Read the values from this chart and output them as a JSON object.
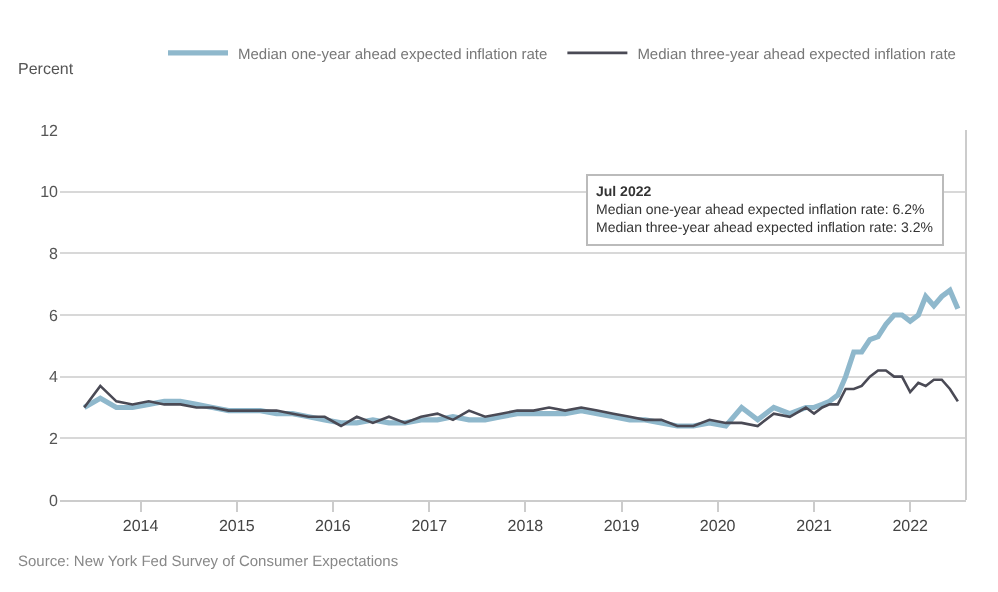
{
  "chart_data": {
    "type": "line",
    "ylabel": "Percent",
    "xlim": [
      "2013-03",
      "2022-08"
    ],
    "xticks": [
      "2014",
      "2015",
      "2016",
      "2017",
      "2018",
      "2019",
      "2020",
      "2021",
      "2022"
    ],
    "ylim": [
      0,
      12
    ],
    "yticks": [
      0,
      2,
      4,
      6,
      8,
      10,
      12
    ],
    "grid": "y",
    "legend": "top right",
    "x": [
      "2013-06",
      "2013-08",
      "2013-10",
      "2013-12",
      "2014-02",
      "2014-04",
      "2014-06",
      "2014-08",
      "2014-10",
      "2014-12",
      "2015-02",
      "2015-04",
      "2015-06",
      "2015-08",
      "2015-10",
      "2015-12",
      "2016-02",
      "2016-04",
      "2016-06",
      "2016-08",
      "2016-10",
      "2016-12",
      "2017-02",
      "2017-04",
      "2017-06",
      "2017-08",
      "2017-10",
      "2017-12",
      "2018-02",
      "2018-04",
      "2018-06",
      "2018-08",
      "2018-10",
      "2018-12",
      "2019-02",
      "2019-04",
      "2019-06",
      "2019-08",
      "2019-10",
      "2019-12",
      "2020-02",
      "2020-04",
      "2020-06",
      "2020-08",
      "2020-10",
      "2020-12",
      "2021-01",
      "2021-02",
      "2021-03",
      "2021-04",
      "2021-05",
      "2021-06",
      "2021-07",
      "2021-08",
      "2021-09",
      "2021-10",
      "2021-11",
      "2021-12",
      "2022-01",
      "2022-02",
      "2022-03",
      "2022-04",
      "2022-05",
      "2022-06",
      "2022-07"
    ],
    "series": [
      {
        "name": "Median one-year ahead expected inflation rate",
        "color": "#8fb8cc",
        "values": [
          3.0,
          3.3,
          3.0,
          3.0,
          3.1,
          3.2,
          3.2,
          3.1,
          3.0,
          2.9,
          2.9,
          2.9,
          2.8,
          2.8,
          2.7,
          2.6,
          2.5,
          2.5,
          2.6,
          2.5,
          2.5,
          2.6,
          2.6,
          2.7,
          2.6,
          2.6,
          2.7,
          2.8,
          2.8,
          2.8,
          2.8,
          2.9,
          2.8,
          2.7,
          2.6,
          2.6,
          2.5,
          2.4,
          2.4,
          2.5,
          2.4,
          3.0,
          2.6,
          3.0,
          2.8,
          3.0,
          3.0,
          3.1,
          3.2,
          3.4,
          4.0,
          4.8,
          4.8,
          5.2,
          5.3,
          5.7,
          6.0,
          6.0,
          5.8,
          6.0,
          6.6,
          6.3,
          6.6,
          6.8,
          6.2
        ]
      },
      {
        "name": "Median three-year ahead expected inflation rate",
        "color": "#4a4a55",
        "values": [
          3.0,
          3.7,
          3.2,
          3.1,
          3.2,
          3.1,
          3.1,
          3.0,
          3.0,
          2.9,
          2.9,
          2.9,
          2.9,
          2.8,
          2.7,
          2.7,
          2.4,
          2.7,
          2.5,
          2.7,
          2.5,
          2.7,
          2.8,
          2.6,
          2.9,
          2.7,
          2.8,
          2.9,
          2.9,
          3.0,
          2.9,
          3.0,
          2.9,
          2.8,
          2.7,
          2.6,
          2.6,
          2.4,
          2.4,
          2.6,
          2.5,
          2.5,
          2.4,
          2.8,
          2.7,
          3.0,
          2.8,
          3.0,
          3.1,
          3.1,
          3.6,
          3.6,
          3.7,
          4.0,
          4.2,
          4.2,
          4.0,
          4.0,
          3.5,
          3.8,
          3.7,
          3.9,
          3.9,
          3.6,
          3.2
        ]
      }
    ],
    "annotations": [
      "Jul 2022",
      "Median one-year ahead expected inflation rate: 6.2%",
      "Median three-year ahead expected inflation rate: 3.2%",
      "Source: New York Fed Survey of Consumer Expectations"
    ]
  }
}
